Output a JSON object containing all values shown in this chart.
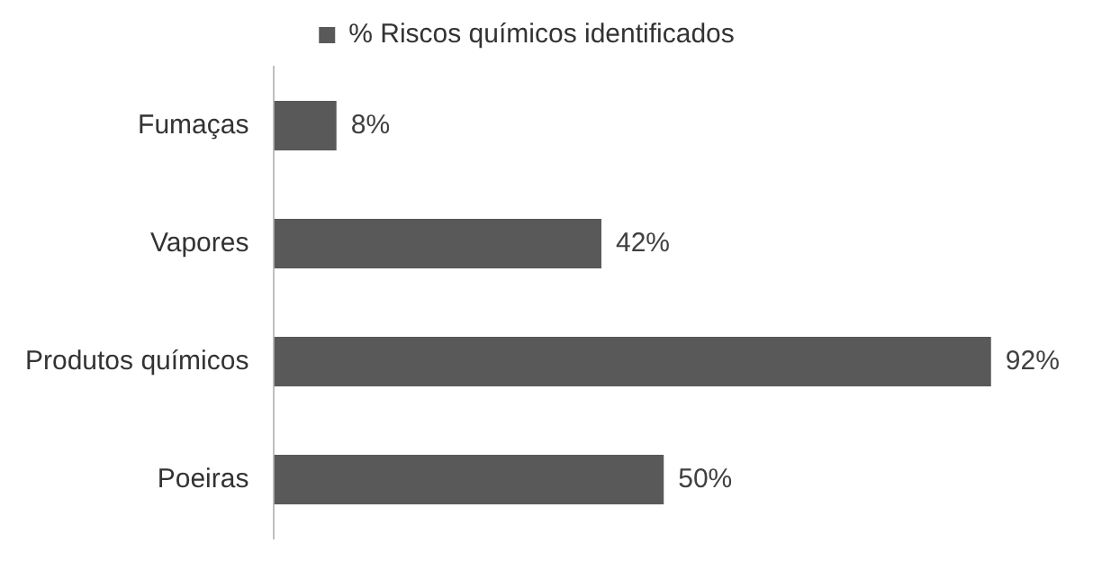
{
  "chart_data": {
    "type": "bar",
    "orientation": "horizontal",
    "categories": [
      "Fumaças",
      "Vapores",
      "Produtos químicos",
      "Poeiras"
    ],
    "series": [
      {
        "name": "% Riscos químicos identificados",
        "color": "#595959",
        "values": [
          8,
          42,
          92,
          50
        ],
        "value_labels": [
          "8%",
          "42%",
          "92%",
          "50%"
        ]
      }
    ],
    "tick_labels": "y",
    "legend": "top"
  }
}
